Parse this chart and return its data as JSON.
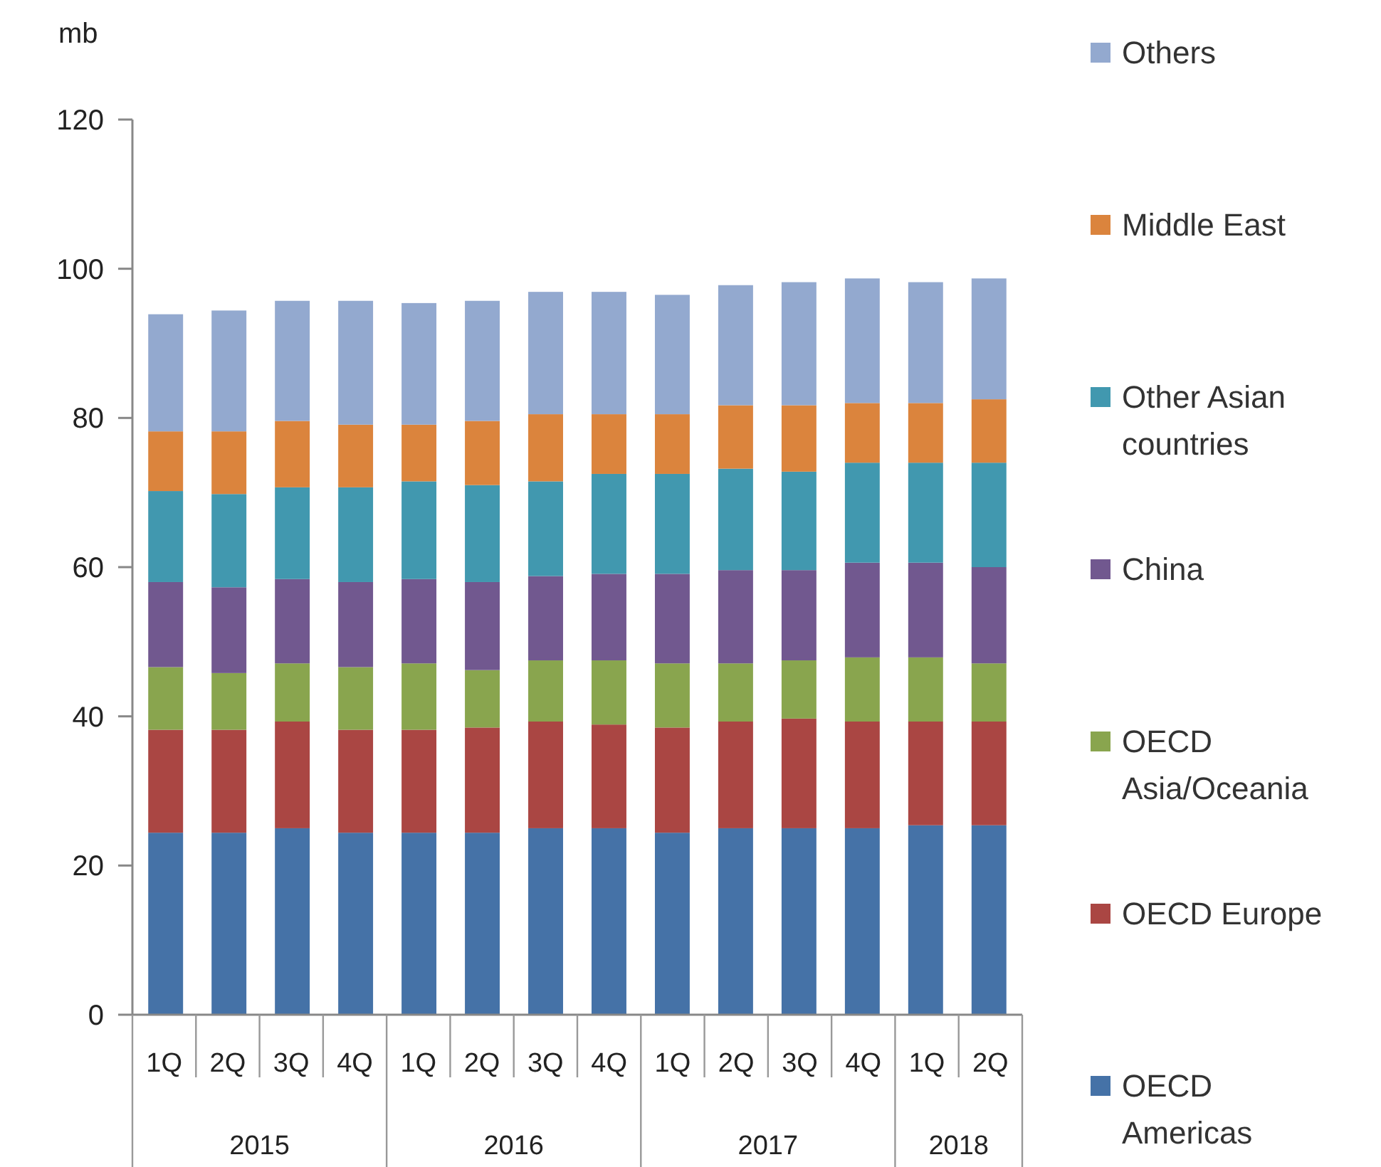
{
  "chart_data": {
    "type": "bar",
    "stacked": true,
    "ylabel": "mb",
    "categories": [
      "1Q",
      "2Q",
      "3Q",
      "4Q",
      "1Q",
      "2Q",
      "3Q",
      "4Q",
      "1Q",
      "2Q",
      "3Q",
      "4Q",
      "1Q",
      "2Q"
    ],
    "annotations": [
      "2015",
      "2016",
      "2017",
      "2018"
    ],
    "series": [
      {
        "name": "OECD Americas",
        "color": "#4572a7",
        "values": [
          24.4,
          24.4,
          25,
          24.4,
          24.4,
          24.4,
          25,
          25,
          24.4,
          25,
          25,
          25,
          25.4,
          25.4
        ]
      },
      {
        "name": "OECD Europe",
        "color": "#aa4643",
        "values": [
          13.8,
          13.8,
          14.3,
          13.8,
          13.8,
          14.1,
          14.3,
          13.9,
          14.1,
          14.3,
          14.7,
          14.3,
          13.9,
          13.9
        ]
      },
      {
        "name": "OECD Asia/Oceania",
        "color": "#89a54e",
        "values": [
          8.4,
          7.6,
          7.8,
          8.4,
          8.9,
          7.7,
          8.2,
          8.6,
          8.6,
          7.8,
          7.8,
          8.6,
          8.6,
          7.8
        ]
      },
      {
        "name": "China",
        "color": "#71588f",
        "values": [
          11.4,
          11.5,
          11.3,
          11.4,
          11.3,
          11.8,
          11.3,
          11.6,
          12.0,
          12.5,
          12.1,
          12.7,
          12.7,
          12.9
        ]
      },
      {
        "name": "Other Asian countries",
        "color": "#4198af",
        "values": [
          12.2,
          12.5,
          12.3,
          12.7,
          13.1,
          13.0,
          12.7,
          13.4,
          13.4,
          13.6,
          13.2,
          13.4,
          13.4,
          14.0
        ]
      },
      {
        "name": "Middle East",
        "color": "#db843d",
        "values": [
          8.0,
          8.4,
          8.9,
          8.4,
          7.6,
          8.6,
          9.0,
          8.0,
          8.0,
          8.5,
          8.9,
          8.0,
          8.0,
          8.5
        ]
      },
      {
        "name": "Others",
        "color": "#93a9cf",
        "values": [
          15.7,
          16.2,
          16.1,
          16.6,
          16.3,
          16.1,
          16.4,
          16.4,
          16.0,
          16.1,
          16.5,
          16.7,
          16.2,
          16.2
        ]
      }
    ],
    "ylim": [
      0,
      120
    ],
    "yticks": [
      0,
      20,
      40,
      60,
      80,
      100,
      120
    ],
    "grid": false,
    "legend": "right"
  }
}
